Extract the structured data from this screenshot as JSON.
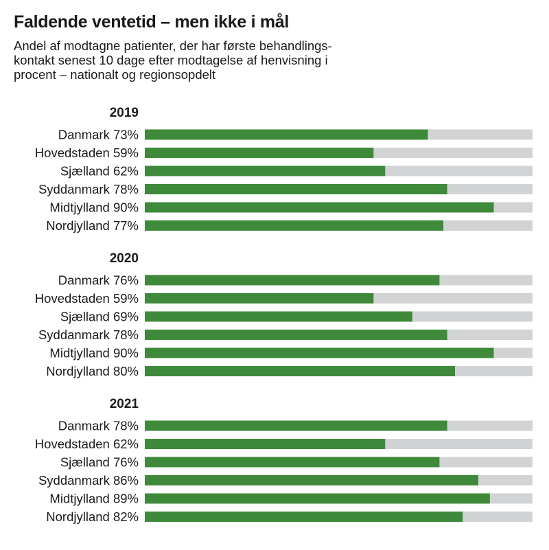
{
  "title": "Faldende ventetid – men ikke i mål",
  "subtitle": "Andel af modtagne patienter, der har første behandlings-\nkontakt senest 10 dage efter modtagelse af henvisning i\nprocent – nationalt og regionsopdelt",
  "colors": {
    "bar": "#3e8a3a",
    "track": "#d2d3d4",
    "text": "#1a1a1a"
  },
  "chart_data": {
    "type": "bar",
    "orientation": "horizontal",
    "unit": "%",
    "xlim": [
      0,
      100
    ],
    "groups": [
      {
        "label": "2019",
        "categories": [
          "Danmark",
          "Hovedstaden",
          "Sjælland",
          "Syddanmark",
          "Midtjylland",
          "Nordjylland"
        ],
        "values": [
          73,
          59,
          62,
          78,
          90,
          77
        ]
      },
      {
        "label": "2020",
        "categories": [
          "Danmark",
          "Hovedstaden",
          "Sjælland",
          "Syddanmark",
          "Midtjylland",
          "Nordjylland"
        ],
        "values": [
          76,
          59,
          69,
          78,
          90,
          80
        ]
      },
      {
        "label": "2021",
        "categories": [
          "Danmark",
          "Hovedstaden",
          "Sjælland",
          "Syddanmark",
          "Midtjylland",
          "Nordjylland"
        ],
        "values": [
          78,
          62,
          76,
          86,
          89,
          82
        ]
      }
    ]
  }
}
